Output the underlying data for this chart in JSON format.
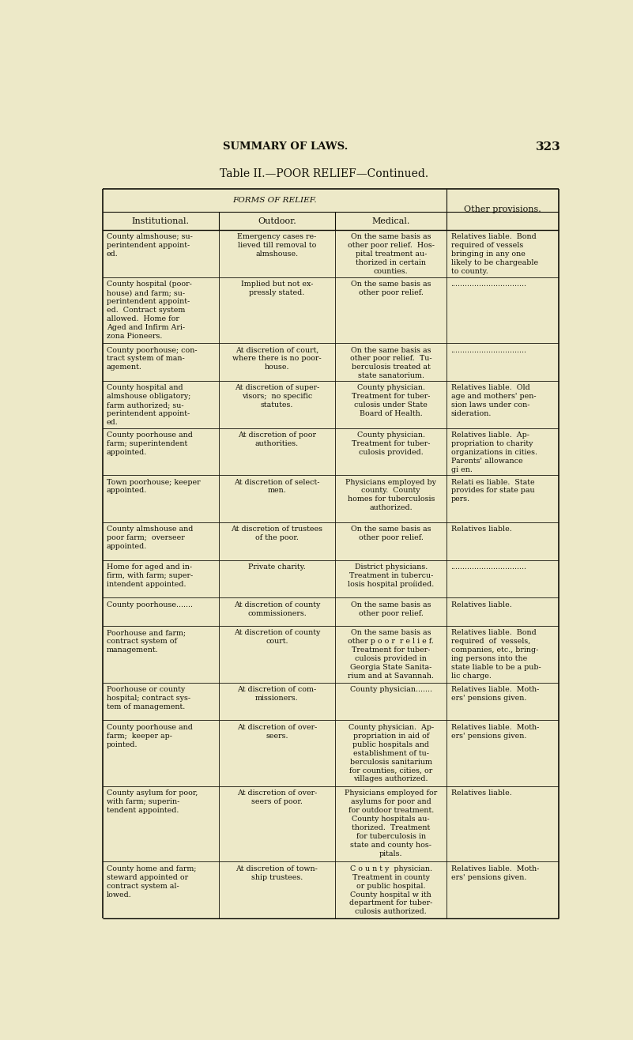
{
  "page_title": "SUMMARY OF LAWS.",
  "page_number": "323",
  "table_title": "Table II.—POOR RELIEF—Continued.",
  "header_forms": "FORMS OF RELIEF.",
  "header_other": "Other provisions.",
  "col_headers": [
    "Institutional.",
    "Outdoor.",
    "Medical."
  ],
  "bg_color": "#ede9c8",
  "text_color": "#111008",
  "rows": [
    [
      "County almshouse; su-\nperintendent appoint-\ned.",
      "Emergency cases re-\nlieved till removal to\nalmshouse.",
      "On the same basis as\nother poor relief.  Hos-\npital treatment au-\nthorized in certain\ncounties.",
      "Relatives liable.  Bond\nrequired of vessels\nbringing in any one\nlikely to be chargeable\nto county."
    ],
    [
      "County hospital (poor-\nhouse) and farm; su-\nperintendent appoint-\ned.  Contract system\nallowed.  Home for\nAged and Infirm Ari-\nzona Pioneers.",
      "Implied but not ex-\npressly stated.",
      "On the same basis as\nother poor relief.",
      "................................"
    ],
    [
      "County poorhouse; con-\ntract system of man-\nagement.",
      "At discretion of court,\nwhere there is no poor-\nhouse.",
      "On the same basis as\nother poor relief.  Tu-\nberculosis treated at\nstate sanatorium.",
      "................................"
    ],
    [
      "County hospital and\nalmshouse obligatory;\nfarm authorized; su-\nperintendent appoint-\ned.",
      "At discretion of super-\nvisors;  no specific\nstatutes.",
      "County physician.\nTreatment for tuber-\nculosis under State\nBoard of Health.",
      "Relatives liable.  Old\nage and mothers' pen-\nsion laws under con-\nsideration."
    ],
    [
      "County poorhouse and\nfarm; superintendent\nappointed.",
      "At discretion of poor\nauthorities.",
      "County physician.\nTreatment for tuber-\nculosis provided.",
      "Relatives liable.  Ap-\npropriation to charity\norganizations in cities.\nParents' allowance\ngi en."
    ],
    [
      "Town poorhouse; keeper\nappointed.",
      "At discretion of select-\nmen.",
      "Physicians employed by\ncounty.  County\nhomes for tuberculosis\nauthorized.",
      "Relati es liable.  State\nprovides for state pau\npers."
    ],
    [
      "County almshouse and\npoor farm;  overseer\nappointed.",
      "At discretion of trustees\nof the poor.",
      "On the same basis as\nother poor relief.",
      "Relatives liable."
    ],
    [
      "Home for aged and in-\nfirm, with farm; super-\nintendent appointed.",
      "Private charity.",
      "District physicians.\nTreatment in tubercu-\nlosis hospital proíided.",
      "................................"
    ],
    [
      "County poorhouse.......",
      "At discretion of county\ncommissioners.",
      "On the same basis as\nother poor relief.",
      "Relatives liable."
    ],
    [
      "Poorhouse and farm;\ncontract system of\nmanagement.",
      "At discretion of county\ncourt.",
      "On the same basis as\nother p o o r  r e l i e f.\nTreatment for tuber-\nculosis provided in\nGeorgia State Sanita-\nrium and at Savannah.",
      "Relatives liable.  Bond\nrequired  of  vessels,\ncompanies, etc., bring-\ning persons into the\nstate liable to be a pub-\nlic charge."
    ],
    [
      "Poorhouse or county\nhospital; contract sys-\ntem of management.",
      "At discretion of com-\nmissioners.",
      "County physician.......",
      "Relatives liable.  Moth-\ners' pensions given."
    ],
    [
      "County poorhouse and\nfarm;  keeper ap-\npointed.",
      "At discretion of over-\nseers.",
      "County physician.  Ap-\npropriation in aid of\npublic hospitals and\nestablishment of tu-\nberculosis sanitarium\nfor counties, cities, or\nvillages authorized.",
      "Relatives liable.  Moth-\ners' pensions given."
    ],
    [
      "County asylum for poor,\nwith farm; superin-\ntendent appointed.",
      "At discretion of over-\nseers of poor.",
      "Physicians employed for\nasylums for poor and\nfor outdoor treatment.\nCounty hospitals au-\nthorized.  Treatment\nfor tuberculosis in\nstate and county hos-\npitals.",
      "Relatives liable."
    ],
    [
      "County home and farm;\nsteward appointed or\ncontract system al-\nlowed.",
      "At discretion of town-\nship trustees.",
      "C o u n t y  physician.\nTreatment in county\nor public hospital.\nCounty hospital w ith\ndepartment for tuber-\nculosis authorized.",
      "Relatives liable.  Moth-\ners' pensions given."
    ]
  ],
  "row_line_hints": [
    5,
    7,
    4,
    5,
    5,
    5,
    4,
    4,
    3,
    6,
    4,
    7,
    8,
    6
  ]
}
